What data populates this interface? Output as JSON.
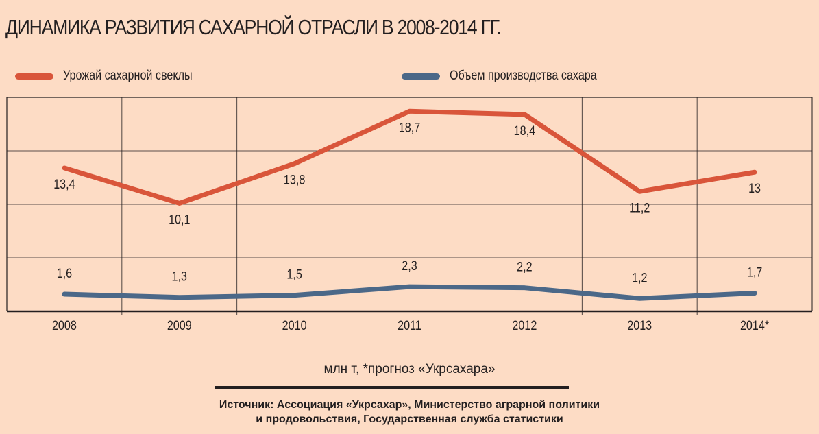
{
  "chart_data": {
    "type": "line",
    "title": "ДИНАМИКА РАЗВИТИЯ САХАРНОЙ ОТРАСЛИ В 2008-2014 ГГ.",
    "categories": [
      "2008",
      "2009",
      "2010",
      "2011",
      "2012",
      "2013",
      "2014*"
    ],
    "series": [
      {
        "name": "Урожай сахарной свеклы",
        "color": "#d9553a",
        "values": [
          13.4,
          10.1,
          13.8,
          18.7,
          18.4,
          11.2,
          13
        ],
        "labels": [
          "13,4",
          "10,1",
          "13,8",
          "18,7",
          "18,4",
          "11,2",
          "13"
        ]
      },
      {
        "name": "Объем производства сахара",
        "color": "#4b6888",
        "values": [
          1.6,
          1.3,
          1.5,
          2.3,
          2.2,
          1.2,
          1.7
        ],
        "labels": [
          "1,6",
          "1,3",
          "1,5",
          "2,3",
          "2,2",
          "1,2",
          "1,7"
        ]
      }
    ],
    "ylim": [
      0,
      20
    ],
    "grid": true,
    "legend_position": "top",
    "xlabel": "",
    "ylabel": ""
  },
  "footer": {
    "units": "млн т,  *прогноз «Укрсахара»",
    "source_line1": "Источник: Ассоциация «Укрсахар», Министерство аграрной политики",
    "source_line2": "и продовольствия, Государственная служба статистики"
  }
}
